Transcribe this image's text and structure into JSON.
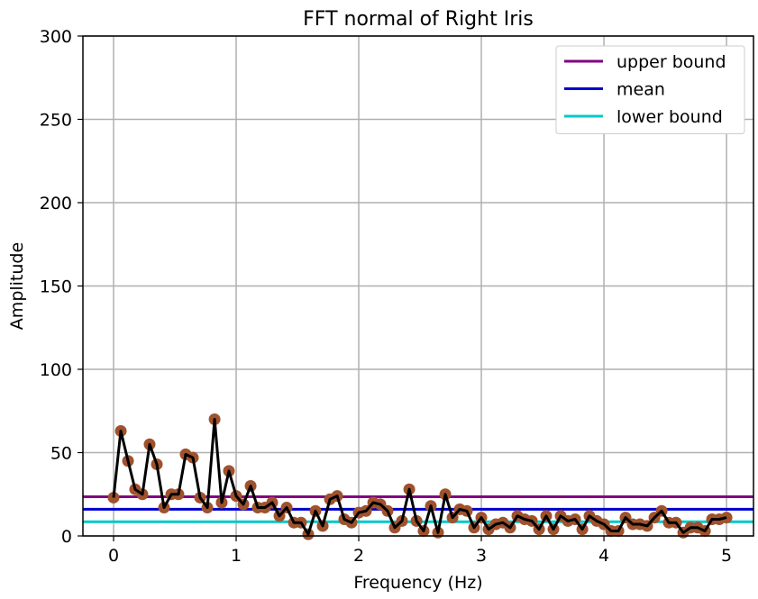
{
  "chart_data": {
    "type": "line",
    "title": "FFT normal of Right Iris",
    "xlabel": "Frequency (Hz)",
    "ylabel": "Amplitude",
    "xlim": [
      -0.25,
      5.22
    ],
    "ylim": [
      0,
      300
    ],
    "xticks": [
      0,
      1,
      2,
      3,
      4,
      5
    ],
    "yticks": [
      0,
      50,
      100,
      150,
      200,
      250,
      300
    ],
    "xtick_labels": [
      "0",
      "1",
      "2",
      "3",
      "4",
      "5"
    ],
    "ytick_labels": [
      "0",
      "50",
      "100",
      "150",
      "200",
      "250",
      "300"
    ],
    "grid": true,
    "legend_position": "top-right",
    "series": [
      {
        "name": "",
        "line_color": "#000000",
        "marker_color": "#a0522d",
        "x": [
          0,
          0.059,
          0.118,
          0.176,
          0.235,
          0.294,
          0.353,
          0.412,
          0.471,
          0.529,
          0.588,
          0.647,
          0.706,
          0.765,
          0.824,
          0.882,
          0.941,
          1.0,
          1.059,
          1.118,
          1.176,
          1.235,
          1.294,
          1.353,
          1.412,
          1.471,
          1.529,
          1.588,
          1.647,
          1.706,
          1.765,
          1.824,
          1.882,
          1.941,
          2.0,
          2.059,
          2.118,
          2.176,
          2.235,
          2.294,
          2.353,
          2.412,
          2.471,
          2.529,
          2.588,
          2.647,
          2.706,
          2.765,
          2.824,
          2.882,
          2.941,
          3.0,
          3.059,
          3.118,
          3.176,
          3.235,
          3.294,
          3.353,
          3.412,
          3.471,
          3.529,
          3.588,
          3.647,
          3.706,
          3.765,
          3.824,
          3.882,
          3.941,
          4.0,
          4.059,
          4.118,
          4.176,
          4.235,
          4.294,
          4.353,
          4.412,
          4.471,
          4.529,
          4.588,
          4.647,
          4.706,
          4.765,
          4.824,
          4.882,
          4.941,
          5.0
        ],
        "values": [
          23,
          63,
          45,
          28,
          25,
          55,
          43,
          17,
          25,
          25,
          49,
          47,
          23,
          17,
          70,
          20,
          39,
          24,
          19,
          30,
          17,
          17,
          20,
          12,
          17,
          8,
          8,
          1,
          15,
          6,
          22,
          24,
          10,
          8,
          14,
          15,
          20,
          19,
          15,
          5,
          9,
          28,
          9,
          3,
          18,
          2,
          25,
          11,
          16,
          15,
          5,
          11,
          4,
          7,
          8,
          5,
          12,
          10,
          9,
          4,
          12,
          4,
          12,
          9,
          10,
          4,
          12,
          9,
          7,
          3,
          3,
          11,
          7,
          7,
          6,
          11,
          15,
          8,
          8,
          2,
          5,
          5,
          3,
          10,
          10,
          11
        ]
      },
      {
        "name": "upper bound",
        "color": "#800080",
        "y": 23.5
      },
      {
        "name": "mean",
        "color": "#0000cd",
        "y": 16
      },
      {
        "name": "lower bound",
        "color": "#00c8c8",
        "y": 8.5
      }
    ]
  }
}
